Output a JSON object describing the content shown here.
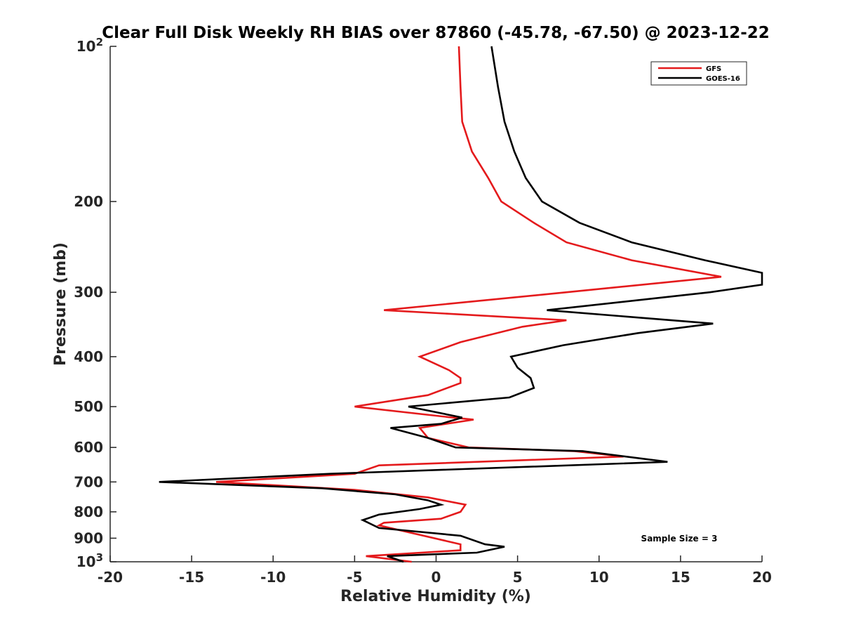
{
  "chart_data": {
    "type": "line",
    "title": "Clear Full Disk Weekly RH BIAS over 87860 (-45.78, -67.50) @ 2023-12-22",
    "xlabel": "Relative Humidity (%)",
    "ylabel": "Pressure (mb)",
    "xlim": [
      -20,
      20
    ],
    "ylim": [
      100,
      1000
    ],
    "yscale": "log",
    "y_reversed": true,
    "grid": false,
    "xticks": [
      -20,
      -15,
      -10,
      -5,
      0,
      5,
      10,
      15,
      20
    ],
    "xtick_labels": [
      "-20",
      "-15",
      "-10",
      "-5",
      "0",
      "5",
      "10",
      "15",
      "20"
    ],
    "yticks": [
      100,
      200,
      300,
      400,
      500,
      600,
      700,
      800,
      900,
      1000
    ],
    "ytick_labels": [
      {
        "base": "10",
        "exp": "2"
      },
      {
        "base": "200",
        "exp": ""
      },
      {
        "base": "300",
        "exp": ""
      },
      {
        "base": "400",
        "exp": ""
      },
      {
        "base": "500",
        "exp": ""
      },
      {
        "base": "600",
        "exp": ""
      },
      {
        "base": "700",
        "exp": ""
      },
      {
        "base": "800",
        "exp": ""
      },
      {
        "base": "900",
        "exp": ""
      },
      {
        "base": "10",
        "exp": "3"
      }
    ],
    "legend_position": "top-right",
    "annotation": "Sample Size = 3",
    "series": [
      {
        "name": "GFS",
        "color": "#e41a1c",
        "points": [
          [
            -1.5,
            1000
          ],
          [
            -4.3,
            975
          ],
          [
            1.5,
            950
          ],
          [
            1.5,
            925
          ],
          [
            -3.5,
            850
          ],
          [
            -3.2,
            840
          ],
          [
            0.3,
            825
          ],
          [
            1.5,
            800
          ],
          [
            1.8,
            775
          ],
          [
            -0.5,
            750
          ],
          [
            -5.0,
            725
          ],
          [
            -13.5,
            700
          ],
          [
            -5.0,
            675
          ],
          [
            -3.5,
            650
          ],
          [
            11.5,
            625
          ],
          [
            8.5,
            610
          ],
          [
            2.0,
            600
          ],
          [
            -0.5,
            575
          ],
          [
            -1.0,
            550
          ],
          [
            2.3,
            530
          ],
          [
            1.0,
            525
          ],
          [
            -5.0,
            500
          ],
          [
            -0.5,
            475
          ],
          [
            1.5,
            450
          ],
          [
            1.5,
            440
          ],
          [
            0.8,
            425
          ],
          [
            -1.0,
            400
          ],
          [
            1.5,
            375
          ],
          [
            5.3,
            350
          ],
          [
            8.0,
            340
          ],
          [
            -3.2,
            325
          ],
          [
            8.0,
            300
          ],
          [
            17.5,
            280
          ],
          [
            12.0,
            260
          ],
          [
            8.0,
            240
          ],
          [
            6.0,
            220
          ],
          [
            4.0,
            200
          ],
          [
            3.2,
            180
          ],
          [
            2.2,
            160
          ],
          [
            1.6,
            140
          ],
          [
            1.5,
            120
          ],
          [
            1.4,
            100
          ]
        ]
      },
      {
        "name": "GOES-16",
        "color": "#000000",
        "points": [
          [
            -2.0,
            1000
          ],
          [
            -3.0,
            975
          ],
          [
            2.5,
            960
          ],
          [
            4.2,
            935
          ],
          [
            3.0,
            925
          ],
          [
            1.5,
            890
          ],
          [
            -3.5,
            860
          ],
          [
            -4.5,
            830
          ],
          [
            -3.5,
            810
          ],
          [
            -1.0,
            790
          ],
          [
            0.3,
            775
          ],
          [
            -0.5,
            760
          ],
          [
            -2.5,
            740
          ],
          [
            -7.0,
            720
          ],
          [
            -17.0,
            700
          ],
          [
            -6.5,
            675
          ],
          [
            14.2,
            640
          ],
          [
            9.0,
            610
          ],
          [
            1.2,
            600
          ],
          [
            -0.5,
            575
          ],
          [
            -2.8,
            550
          ],
          [
            0.3,
            540
          ],
          [
            1.6,
            525
          ],
          [
            -1.7,
            500
          ],
          [
            4.5,
            480
          ],
          [
            6.0,
            460
          ],
          [
            5.8,
            440
          ],
          [
            5.0,
            420
          ],
          [
            4.6,
            400
          ],
          [
            7.8,
            380
          ],
          [
            12.4,
            360
          ],
          [
            17.0,
            345
          ],
          [
            6.8,
            325
          ],
          [
            16.8,
            300
          ],
          [
            20.0,
            290
          ],
          [
            20.0,
            275
          ],
          [
            16.5,
            260
          ],
          [
            12.0,
            240
          ],
          [
            8.8,
            220
          ],
          [
            6.5,
            200
          ],
          [
            5.5,
            180
          ],
          [
            4.8,
            160
          ],
          [
            4.2,
            140
          ],
          [
            3.8,
            120
          ],
          [
            3.4,
            100
          ]
        ]
      }
    ]
  }
}
